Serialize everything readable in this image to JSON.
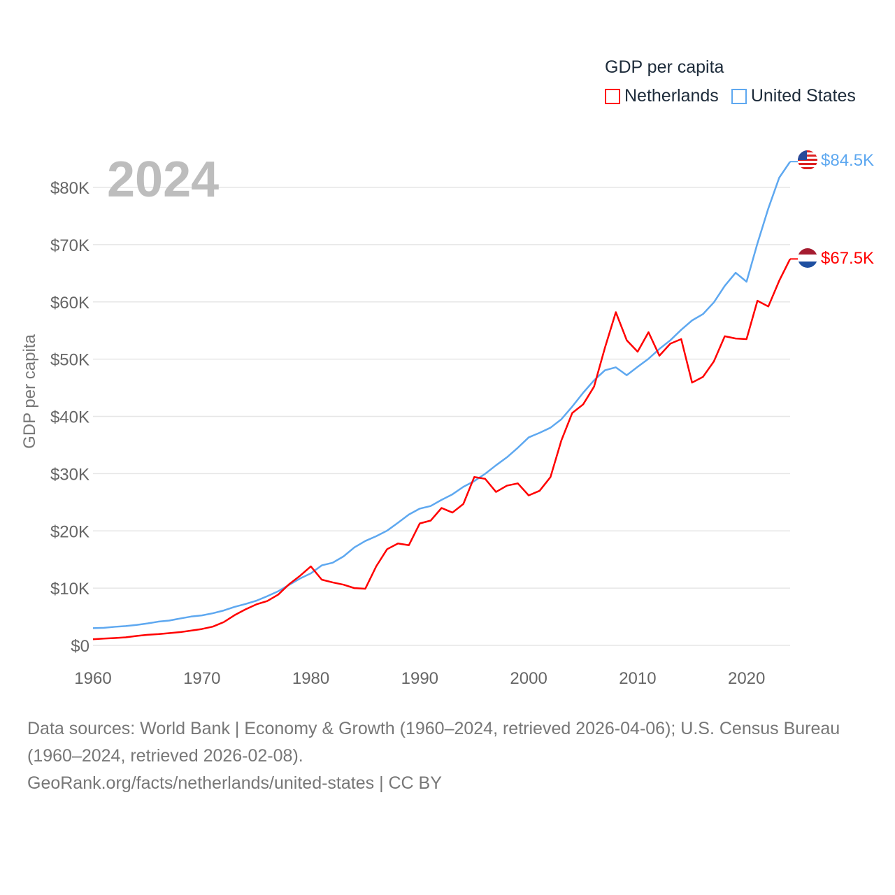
{
  "legend": {
    "title": "GDP per capita",
    "items": [
      {
        "name": "Netherlands",
        "color": "#ff0000"
      },
      {
        "name": "United States",
        "color": "#5ea8f0"
      }
    ]
  },
  "year_label": "2024",
  "end_labels": {
    "united_states": "$84.5K",
    "netherlands": "$67.5K"
  },
  "footer": {
    "sources": "Data sources: World Bank | Economy & Growth (1960–2024, retrieved 2026-04-06); U.S. Census Bureau (1960–2024, retrieved 2026-02-08).",
    "credit": "GeoRank.org/facts/netherlands/united-states | CC BY"
  },
  "chart_data": {
    "type": "line",
    "title": "GDP per capita",
    "xlabel": "",
    "ylabel": "GDP per capita",
    "xlim": [
      1960,
      2024
    ],
    "ylim": [
      0,
      85000
    ],
    "x_ticks": [
      1960,
      1970,
      1980,
      1990,
      2000,
      2010,
      2020
    ],
    "x_tick_labels": [
      "1960",
      "1970",
      "1980",
      "1990",
      "2000",
      "2010",
      "2020"
    ],
    "y_ticks": [
      0,
      10000,
      20000,
      30000,
      40000,
      50000,
      60000,
      70000,
      80000
    ],
    "y_tick_labels": [
      "$0",
      "$10K",
      "$20K",
      "$30K",
      "$40K",
      "$50K",
      "$60K",
      "$70K",
      "$80K"
    ],
    "grid": true,
    "legend_position": "top-right",
    "x": [
      1960,
      1961,
      1962,
      1963,
      1964,
      1965,
      1966,
      1967,
      1968,
      1969,
      1970,
      1971,
      1972,
      1973,
      1974,
      1975,
      1976,
      1977,
      1978,
      1979,
      1980,
      1981,
      1982,
      1983,
      1984,
      1985,
      1986,
      1987,
      1988,
      1989,
      1990,
      1991,
      1992,
      1993,
      1994,
      1995,
      1996,
      1997,
      1998,
      1999,
      2000,
      2001,
      2002,
      2003,
      2004,
      2005,
      2006,
      2007,
      2008,
      2009,
      2010,
      2011,
      2012,
      2013,
      2014,
      2015,
      2016,
      2017,
      2018,
      2019,
      2020,
      2021,
      2022,
      2023,
      2024
    ],
    "series": [
      {
        "name": "United States",
        "color": "#5ea8f0",
        "values": [
          3007,
          3067,
          3244,
          3375,
          3574,
          3828,
          4146,
          4336,
          4696,
          5032,
          5234,
          5609,
          6094,
          6726,
          7226,
          7801,
          8592,
          9453,
          10565,
          11674,
          12575,
          13976,
          14434,
          15544,
          17121,
          18237,
          19071,
          20039,
          21417,
          22857,
          23889,
          24342,
          25419,
          26387,
          27695,
          28691,
          29968,
          31459,
          32854,
          34516,
          36330,
          37134,
          38023,
          39497,
          41725,
          44123,
          46302,
          48050,
          48570,
          47195,
          48651,
          50066,
          51784,
          53291,
          55124,
          56763,
          57867,
          59915,
          62805,
          65095,
          63528,
          70219,
          76330,
          81695,
          84500
        ]
      },
      {
        "name": "Netherlands",
        "color": "#ff0000",
        "values": [
          1069,
          1197,
          1286,
          1400,
          1650,
          1848,
          1965,
          2135,
          2314,
          2586,
          2861,
          3277,
          4062,
          5278,
          6293,
          7165,
          7745,
          8861,
          10680,
          12145,
          13790,
          11480,
          11000,
          10600,
          10000,
          9900,
          13800,
          16800,
          17800,
          17500,
          21300,
          21800,
          24000,
          23200,
          24700,
          29400,
          29100,
          26800,
          27900,
          28300,
          26200,
          27000,
          29400,
          35800,
          40600,
          42100,
          45200,
          52000,
          58200,
          53300,
          51300,
          54700,
          50600,
          52700,
          53500,
          45900,
          46900,
          49600,
          54000,
          53600,
          53500,
          60200,
          59200,
          63700,
          67500
        ]
      }
    ]
  }
}
